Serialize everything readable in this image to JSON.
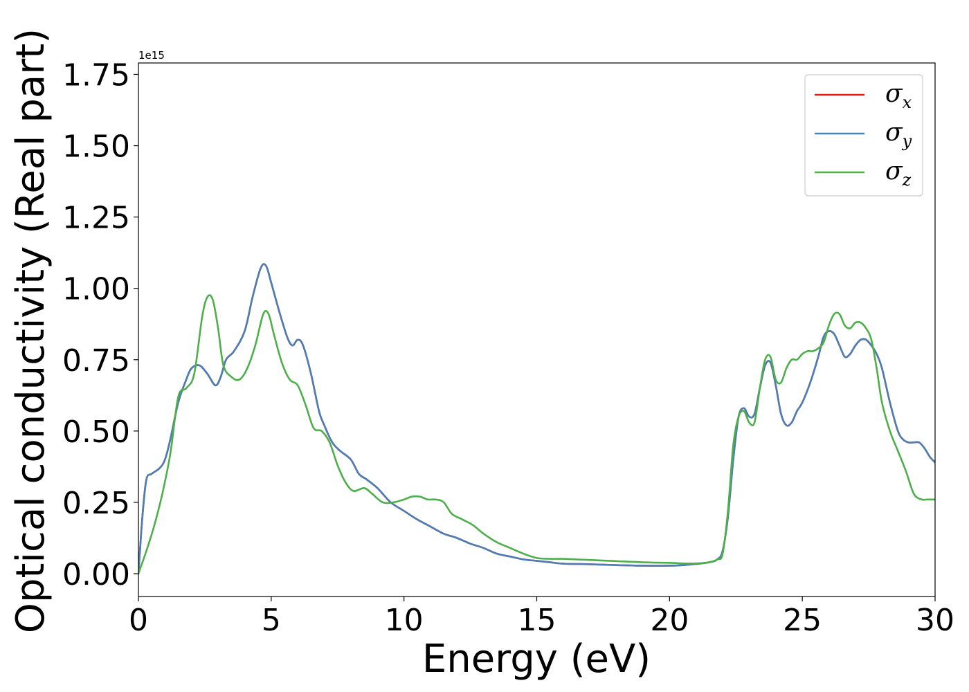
{
  "chart_data": {
    "type": "line",
    "xlabel": "Energy (eV)",
    "ylabel": "Optical conductivity (Real part)",
    "y_offset_label": "1e15",
    "xlim": [
      0,
      30
    ],
    "ylim": [
      -0.08,
      1.79
    ],
    "x_ticks": [
      0,
      5,
      10,
      15,
      20,
      25,
      30
    ],
    "x_tick_labels": [
      "0",
      "5",
      "10",
      "15",
      "20",
      "25",
      "30"
    ],
    "y_ticks": [
      0,
      0.25,
      0.5,
      0.75,
      1.0,
      1.25,
      1.5,
      1.75
    ],
    "y_tick_labels": [
      "0.00",
      "0.25",
      "0.50",
      "0.75",
      "1.00",
      "1.25",
      "1.50",
      "1.75"
    ],
    "grid": false,
    "legend_position": "top-right",
    "series": [
      {
        "name": "σx",
        "symbol": "σ",
        "subscript": "x",
        "color": "#e41a1c",
        "x": [
          0,
          0.15,
          0.3,
          0.5,
          0.8,
          1.0,
          1.2,
          1.5,
          1.8,
          2.0,
          2.3,
          2.6,
          2.9,
          3.1,
          3.3,
          3.6,
          4.0,
          4.3,
          4.6,
          4.8,
          5.0,
          5.3,
          5.6,
          5.8,
          6.0,
          6.2,
          6.5,
          6.8,
          7.0,
          7.3,
          7.6,
          8.0,
          8.3,
          8.6,
          9.0,
          9.5,
          10.0,
          10.5,
          11.0,
          11.5,
          12.0,
          12.5,
          13.0,
          13.5,
          14.0,
          14.5,
          15.0,
          15.5,
          16.0,
          17.0,
          18.0,
          19.0,
          20.0,
          20.5,
          21.0,
          21.5,
          21.8,
          22.0,
          22.2,
          22.4,
          22.6,
          22.8,
          23.0,
          23.2,
          23.4,
          23.6,
          23.8,
          24.0,
          24.2,
          24.4,
          24.6,
          24.8,
          25.0,
          25.3,
          25.6,
          25.8,
          26.0,
          26.2,
          26.4,
          26.6,
          26.8,
          27.0,
          27.2,
          27.4,
          27.6,
          27.8,
          28.0,
          28.3,
          28.6,
          28.8,
          29.0,
          29.2,
          29.4,
          29.6,
          29.8,
          30.0
        ],
        "y": [
          0,
          0.2,
          0.33,
          0.35,
          0.37,
          0.4,
          0.47,
          0.6,
          0.68,
          0.72,
          0.73,
          0.7,
          0.66,
          0.69,
          0.75,
          0.78,
          0.85,
          0.97,
          1.07,
          1.08,
          1.02,
          0.92,
          0.83,
          0.8,
          0.82,
          0.8,
          0.7,
          0.57,
          0.52,
          0.46,
          0.43,
          0.4,
          0.35,
          0.33,
          0.3,
          0.25,
          0.22,
          0.19,
          0.165,
          0.14,
          0.125,
          0.105,
          0.09,
          0.07,
          0.06,
          0.05,
          0.045,
          0.04,
          0.035,
          0.033,
          0.03,
          0.028,
          0.028,
          0.03,
          0.034,
          0.04,
          0.05,
          0.08,
          0.2,
          0.4,
          0.55,
          0.58,
          0.55,
          0.56,
          0.65,
          0.73,
          0.74,
          0.66,
          0.56,
          0.52,
          0.53,
          0.57,
          0.6,
          0.67,
          0.76,
          0.83,
          0.85,
          0.84,
          0.8,
          0.76,
          0.77,
          0.8,
          0.82,
          0.82,
          0.8,
          0.77,
          0.72,
          0.6,
          0.5,
          0.47,
          0.46,
          0.46,
          0.46,
          0.44,
          0.41,
          0.39
        ]
      },
      {
        "name": "σy",
        "symbol": "σ",
        "subscript": "y",
        "color": "#4a7fb5",
        "x": [
          0,
          0.15,
          0.3,
          0.5,
          0.8,
          1.0,
          1.2,
          1.5,
          1.8,
          2.0,
          2.3,
          2.6,
          2.9,
          3.1,
          3.3,
          3.6,
          4.0,
          4.3,
          4.6,
          4.8,
          5.0,
          5.3,
          5.6,
          5.8,
          6.0,
          6.2,
          6.5,
          6.8,
          7.0,
          7.3,
          7.6,
          8.0,
          8.3,
          8.6,
          9.0,
          9.5,
          10.0,
          10.5,
          11.0,
          11.5,
          12.0,
          12.5,
          13.0,
          13.5,
          14.0,
          14.5,
          15.0,
          15.5,
          16.0,
          17.0,
          18.0,
          19.0,
          20.0,
          20.5,
          21.0,
          21.5,
          21.8,
          22.0,
          22.2,
          22.4,
          22.6,
          22.8,
          23.0,
          23.2,
          23.4,
          23.6,
          23.8,
          24.0,
          24.2,
          24.4,
          24.6,
          24.8,
          25.0,
          25.3,
          25.6,
          25.8,
          26.0,
          26.2,
          26.4,
          26.6,
          26.8,
          27.0,
          27.2,
          27.4,
          27.6,
          27.8,
          28.0,
          28.3,
          28.6,
          28.8,
          29.0,
          29.2,
          29.4,
          29.6,
          29.8,
          30.0
        ],
        "y": [
          0,
          0.2,
          0.33,
          0.35,
          0.37,
          0.4,
          0.47,
          0.6,
          0.68,
          0.72,
          0.73,
          0.7,
          0.66,
          0.69,
          0.75,
          0.78,
          0.85,
          0.97,
          1.07,
          1.08,
          1.02,
          0.92,
          0.83,
          0.8,
          0.82,
          0.8,
          0.7,
          0.57,
          0.52,
          0.46,
          0.43,
          0.4,
          0.35,
          0.33,
          0.3,
          0.25,
          0.22,
          0.19,
          0.165,
          0.14,
          0.125,
          0.105,
          0.09,
          0.07,
          0.06,
          0.05,
          0.045,
          0.04,
          0.035,
          0.033,
          0.03,
          0.028,
          0.028,
          0.03,
          0.034,
          0.04,
          0.05,
          0.08,
          0.2,
          0.4,
          0.55,
          0.58,
          0.55,
          0.56,
          0.65,
          0.73,
          0.74,
          0.66,
          0.56,
          0.52,
          0.53,
          0.57,
          0.6,
          0.67,
          0.76,
          0.83,
          0.85,
          0.84,
          0.8,
          0.76,
          0.77,
          0.8,
          0.82,
          0.82,
          0.8,
          0.77,
          0.72,
          0.6,
          0.5,
          0.47,
          0.46,
          0.46,
          0.46,
          0.44,
          0.41,
          0.39
        ]
      },
      {
        "name": "σz",
        "symbol": "σ",
        "subscript": "z",
        "color": "#4daf4a",
        "x": [
          0,
          0.3,
          0.6,
          0.9,
          1.2,
          1.5,
          1.8,
          2.1,
          2.4,
          2.6,
          2.8,
          3.0,
          3.2,
          3.5,
          3.8,
          4.1,
          4.4,
          4.7,
          4.9,
          5.1,
          5.4,
          5.7,
          6.0,
          6.3,
          6.6,
          6.9,
          7.2,
          7.5,
          7.8,
          8.1,
          8.5,
          8.8,
          9.2,
          9.6,
          10.0,
          10.3,
          10.6,
          10.9,
          11.2,
          11.5,
          11.8,
          12.2,
          12.6,
          13.0,
          13.5,
          14.0,
          14.5,
          15.0,
          15.5,
          16.0,
          16.5,
          17.0,
          18.0,
          19.0,
          20.0,
          20.5,
          21.0,
          21.5,
          21.8,
          22.0,
          22.2,
          22.4,
          22.6,
          22.8,
          23.0,
          23.2,
          23.4,
          23.6,
          23.8,
          24.0,
          24.2,
          24.4,
          24.6,
          24.8,
          25.0,
          25.2,
          25.4,
          25.6,
          25.8,
          26.0,
          26.2,
          26.4,
          26.6,
          26.8,
          27.0,
          27.2,
          27.4,
          27.6,
          27.8,
          28.0,
          28.3,
          28.6,
          28.9,
          29.2,
          29.5,
          29.7,
          30.0
        ],
        "y": [
          0,
          0.08,
          0.17,
          0.28,
          0.42,
          0.62,
          0.65,
          0.7,
          0.9,
          0.97,
          0.96,
          0.86,
          0.73,
          0.69,
          0.68,
          0.72,
          0.8,
          0.91,
          0.91,
          0.84,
          0.74,
          0.68,
          0.66,
          0.59,
          0.51,
          0.5,
          0.46,
          0.38,
          0.32,
          0.29,
          0.3,
          0.28,
          0.25,
          0.25,
          0.26,
          0.27,
          0.27,
          0.26,
          0.26,
          0.25,
          0.21,
          0.19,
          0.17,
          0.14,
          0.11,
          0.09,
          0.07,
          0.055,
          0.052,
          0.052,
          0.05,
          0.048,
          0.044,
          0.04,
          0.038,
          0.036,
          0.036,
          0.04,
          0.05,
          0.07,
          0.22,
          0.45,
          0.55,
          0.57,
          0.53,
          0.53,
          0.65,
          0.75,
          0.76,
          0.68,
          0.67,
          0.72,
          0.75,
          0.75,
          0.77,
          0.78,
          0.78,
          0.79,
          0.81,
          0.87,
          0.91,
          0.91,
          0.87,
          0.86,
          0.88,
          0.88,
          0.86,
          0.82,
          0.72,
          0.6,
          0.5,
          0.43,
          0.36,
          0.28,
          0.26,
          0.26,
          0.26
        ]
      }
    ]
  }
}
